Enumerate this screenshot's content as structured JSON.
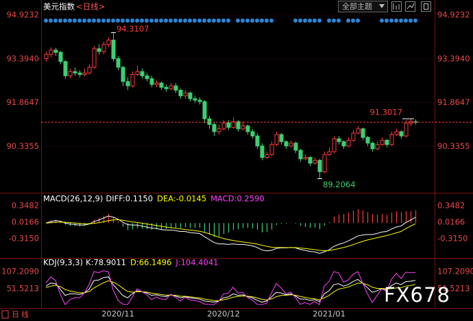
{
  "chart_data": [
    {
      "type": "candlestick",
      "title": "美元指数",
      "period": "<日线>",
      "categories": [
        null,
        null,
        null,
        null,
        null,
        null,
        null,
        null,
        null,
        null,
        null,
        null,
        null,
        null,
        null,
        "2020/11",
        null,
        null,
        null,
        null,
        null,
        null,
        null,
        null,
        null,
        null,
        null,
        null,
        null,
        null,
        null,
        null,
        null,
        null,
        null,
        null,
        null,
        "2020/12",
        null,
        null,
        null,
        null,
        null,
        null,
        null,
        null,
        null,
        null,
        null,
        null,
        null,
        null,
        null,
        null,
        null,
        null,
        null,
        null,
        null,
        "2021/01",
        null,
        null,
        null,
        null,
        null,
        null,
        null,
        null,
        null,
        null,
        null,
        null,
        null,
        null,
        null,
        null,
        null,
        null
      ],
      "open": [
        93.4,
        93.55,
        93.7,
        93.62,
        93.3,
        92.8,
        92.95,
        92.9,
        92.85,
        92.9,
        93.1,
        93.75,
        93.65,
        93.9,
        94.05,
        93.4,
        93.1,
        92.6,
        92.45,
        92.85,
        92.95,
        92.8,
        92.7,
        92.5,
        92.55,
        92.4,
        92.35,
        92.45,
        92.3,
        92.1,
        92.2,
        92.0,
        91.95,
        91.9,
        91.3,
        91.1,
        90.85,
        90.95,
        91.15,
        91.0,
        91.2,
        90.95,
        91.05,
        90.85,
        90.7,
        90.35,
        89.95,
        90.05,
        90.4,
        90.75,
        90.5,
        90.35,
        90.45,
        90.2,
        89.9,
        89.95,
        89.75,
        89.85,
        89.45,
        90.05,
        90.15,
        90.6,
        90.5,
        90.35,
        90.55,
        90.8,
        90.95,
        90.65,
        90.45,
        90.25,
        90.4,
        90.55,
        90.4,
        90.75,
        90.85,
        90.7,
        91.15,
        91.2
      ],
      "high": [
        93.65,
        93.8,
        93.78,
        93.68,
        93.35,
        93.05,
        93.1,
        93.0,
        93.05,
        93.2,
        93.85,
        93.9,
        94.0,
        94.15,
        94.3107,
        93.5,
        93.15,
        92.75,
        92.95,
        93.15,
        93.05,
        92.9,
        92.8,
        92.65,
        92.6,
        92.5,
        92.55,
        92.55,
        92.35,
        92.3,
        92.25,
        92.1,
        92.05,
        91.95,
        91.4,
        91.2,
        91.1,
        91.25,
        91.25,
        91.35,
        91.25,
        91.2,
        91.1,
        90.95,
        90.8,
        90.45,
        90.15,
        90.5,
        90.85,
        90.8,
        90.55,
        90.55,
        90.5,
        90.25,
        90.05,
        90.0,
        89.95,
        89.9,
        90.15,
        90.3,
        90.7,
        90.7,
        90.55,
        90.65,
        90.9,
        91.05,
        91.0,
        90.7,
        90.5,
        90.5,
        90.65,
        90.6,
        90.85,
        90.95,
        90.9,
        91.25,
        91.3017,
        91.28
      ],
      "low": [
        93.3,
        93.45,
        93.5,
        93.2,
        92.7,
        92.72,
        92.8,
        92.75,
        92.78,
        92.85,
        93.05,
        93.55,
        93.55,
        93.8,
        93.3,
        93.0,
        92.45,
        92.3,
        92.4,
        92.8,
        92.7,
        92.6,
        92.4,
        92.4,
        92.3,
        92.25,
        92.3,
        92.2,
        92.0,
        92.0,
        91.9,
        91.85,
        91.8,
        91.15,
        90.95,
        90.7,
        90.75,
        90.9,
        90.9,
        90.95,
        90.85,
        90.9,
        90.75,
        90.6,
        90.25,
        89.85,
        89.9,
        90.0,
        90.35,
        90.4,
        90.25,
        90.3,
        90.1,
        89.8,
        89.85,
        89.65,
        89.7,
        89.2064,
        89.4,
        90.0,
        90.1,
        90.4,
        90.25,
        90.3,
        90.5,
        90.75,
        90.55,
        90.35,
        90.15,
        90.2,
        90.35,
        90.3,
        90.35,
        90.7,
        90.6,
        90.65,
        91.05,
        91.1
      ],
      "close": [
        93.55,
        93.7,
        93.62,
        93.3,
        92.8,
        92.95,
        92.9,
        92.85,
        92.9,
        93.1,
        93.75,
        93.65,
        93.9,
        94.05,
        93.4,
        93.1,
        92.6,
        92.45,
        92.85,
        92.95,
        92.8,
        92.7,
        92.5,
        92.55,
        92.4,
        92.35,
        92.45,
        92.3,
        92.1,
        92.2,
        92.0,
        91.95,
        91.9,
        91.3,
        91.1,
        90.85,
        90.95,
        91.15,
        91.0,
        91.2,
        90.95,
        91.05,
        90.85,
        90.7,
        90.35,
        89.95,
        90.05,
        90.4,
        90.75,
        90.5,
        90.35,
        90.45,
        90.2,
        89.9,
        89.95,
        89.75,
        89.85,
        89.45,
        90.05,
        90.15,
        90.6,
        90.5,
        90.35,
        90.55,
        90.8,
        90.95,
        90.65,
        90.45,
        90.25,
        90.4,
        90.55,
        90.4,
        90.75,
        90.85,
        90.7,
        91.15,
        91.2,
        91.18
      ],
      "ylim": [
        88.74,
        95.21
      ],
      "yticks": [
        94.9232,
        {
          "value": 93.394,
          "label": "93.3940"
        },
        91.8647,
        90.3355
      ],
      "grid": true,
      "up_color": "#ff3c3c",
      "down_color": "#3ccf72"
    },
    {
      "type": "macd",
      "header": "MACD(26,12,9)",
      "series": [
        {
          "legend": "DIFF:0.1150",
          "color": "#ffffff",
          "values": [
            0.0,
            0.03,
            0.05,
            0.04,
            0.0,
            -0.02,
            -0.03,
            -0.04,
            -0.04,
            -0.02,
            0.03,
            0.06,
            0.1,
            0.14,
            0.12,
            0.08,
            0.02,
            -0.03,
            -0.04,
            -0.04,
            -0.06,
            -0.08,
            -0.1,
            -0.11,
            -0.13,
            -0.14,
            -0.14,
            -0.15,
            -0.17,
            -0.17,
            -0.19,
            -0.2,
            -0.21,
            -0.27,
            -0.33,
            -0.39,
            -0.42,
            -0.42,
            -0.43,
            -0.42,
            -0.43,
            -0.43,
            -0.44,
            -0.46,
            -0.49,
            -0.54,
            -0.56,
            -0.55,
            -0.51,
            -0.5,
            -0.5,
            -0.49,
            -0.5,
            -0.53,
            -0.55,
            -0.57,
            -0.58,
            -0.61,
            -0.58,
            -0.54,
            -0.47,
            -0.43,
            -0.4,
            -0.36,
            -0.31,
            -0.26,
            -0.24,
            -0.23,
            -0.23,
            -0.21,
            -0.18,
            -0.17,
            -0.12,
            -0.08,
            -0.06,
            0.01,
            0.06,
            0.115
          ]
        },
        {
          "legend": "DEA:-0.0145",
          "color": "#ffff00",
          "values": [
            0.0,
            0.006,
            0.015,
            0.02,
            0.016,
            0.009,
            0.001,
            -0.007,
            -0.014,
            -0.015,
            -0.006,
            0.007,
            0.026,
            0.048,
            0.062,
            0.066,
            0.057,
            0.04,
            0.024,
            0.011,
            -0.003,
            -0.018,
            -0.034,
            -0.049,
            -0.066,
            -0.08,
            -0.093,
            -0.104,
            -0.117,
            -0.128,
            -0.14,
            -0.152,
            -0.164,
            -0.185,
            -0.214,
            -0.249,
            -0.283,
            -0.31,
            -0.334,
            -0.351,
            -0.367,
            -0.38,
            -0.392,
            -0.406,
            -0.423,
            -0.446,
            -0.469,
            -0.485,
            -0.49,
            -0.492,
            -0.494,
            -0.493,
            -0.494,
            -0.502,
            -0.512,
            -0.523,
            -0.534,
            -0.549,
            -0.555,
            -0.552,
            -0.536,
            -0.515,
            -0.492,
            -0.466,
            -0.435,
            -0.4,
            -0.368,
            -0.34,
            -0.318,
            -0.296,
            -0.273,
            -0.252,
            -0.226,
            -0.197,
            -0.17,
            -0.11,
            -0.06,
            -0.0145
          ]
        },
        {
          "legend": "MACD:0.2590",
          "color": "#ff44ff",
          "kind": "bar",
          "values": [
            0,
            0.048,
            0.07,
            0.04,
            -0.032,
            -0.058,
            -0.062,
            -0.066,
            -0.052,
            -0.01,
            0.072,
            0.106,
            0.148,
            0.184,
            0.116,
            0.028,
            -0.074,
            -0.14,
            -0.128,
            -0.102,
            -0.114,
            -0.124,
            -0.132,
            -0.122,
            -0.128,
            -0.12,
            -0.094,
            -0.092,
            -0.106,
            -0.084,
            -0.1,
            -0.096,
            -0.092,
            -0.17,
            -0.232,
            -0.282,
            -0.274,
            -0.22,
            -0.192,
            -0.138,
            -0.126,
            -0.1,
            -0.096,
            -0.108,
            -0.134,
            -0.188,
            -0.182,
            -0.13,
            -0.04,
            -0.016,
            -0.012,
            0.006,
            -0.012,
            -0.056,
            -0.076,
            -0.094,
            -0.092,
            -0.122,
            -0.05,
            0.024,
            0.132,
            0.17,
            0.184,
            0.212,
            0.25,
            0.28,
            0.256,
            0.22,
            0.176,
            0.172,
            0.186,
            0.164,
            0.212,
            0.234,
            0.22,
            0.24,
            0.24,
            0.259
          ]
        }
      ],
      "ylim": [
        -0.646,
        0.569
      ],
      "yticks": [
        0.3482,
        0.0166,
        {
          "value": -0.315,
          "label": "-0.3150"
        }
      ],
      "up_color": "#ff3c3c",
      "down_color": "#3ccf72"
    },
    {
      "type": "line",
      "header": "KDJ(9,3,3)",
      "series": [
        {
          "legend": "K:78.9011",
          "color": "#ffffff",
          "values": [
            60,
            70,
            68,
            50,
            30,
            35,
            35,
            33,
            38,
            50,
            78,
            80,
            88,
            90,
            65,
            48,
            30,
            22,
            35,
            45,
            42,
            38,
            30,
            32,
            28,
            26,
            32,
            28,
            22,
            26,
            22,
            20,
            18,
            12,
            10,
            8,
            12,
            22,
            25,
            35,
            30,
            32,
            26,
            22,
            14,
            8,
            12,
            25,
            40,
            38,
            32,
            35,
            28,
            18,
            18,
            14,
            16,
            10,
            35,
            45,
            65,
            68,
            60,
            65,
            75,
            82,
            70,
            55,
            40,
            45,
            52,
            48,
            62,
            70,
            65,
            75,
            76,
            78.9011
          ]
        },
        {
          "legend": "D:66.1496",
          "color": "#ffff00",
          "values": [
            55,
            60,
            62.7,
            58.5,
            49,
            44.3,
            41.2,
            38.5,
            38.3,
            42.2,
            54.1,
            62.7,
            71.1,
            77.4,
            73.3,
            64.9,
            53.3,
            42.9,
            40.3,
            41.8,
            41.9,
            40.6,
            37.1,
            35.4,
            32.9,
            30.6,
            31.1,
            30.1,
            27.4,
            26.9,
            25.3,
            23.5,
            21.7,
            18.5,
            15.7,
            13.1,
            12.7,
            15.8,
            18.9,
            24.3,
            26.2,
            28.1,
            27.4,
            25.6,
            21.7,
            17.1,
            15.4,
            18.6,
            25.7,
            29.8,
            30.5,
            32,
            30.7,
            26.5,
            23.7,
            20.5,
            19,
            16,
            22.3,
            29.9,
            41.6,
            50.4,
            53.6,
            57.4,
            63.3,
            69.5,
            69.7,
            64.8,
            56.5,
            52.7,
            52.5,
            51,
            52,
            54,
            55,
            60,
            62,
            66.1496
          ]
        },
        {
          "legend": "J:104.4041",
          "color": "#ff44ff",
          "values": [
            70,
            90,
            78.6,
            33,
            0,
            16.4,
            22.6,
            22,
            37.4,
            65.6,
            107,
            104,
            110,
            107,
            48.4,
            14.2,
            2,
            0,
            24.4,
            51.4,
            42.2,
            32.8,
            15.8,
            25.2,
            18.2,
            16.8,
            33.8,
            23.8,
            11.2,
            24.2,
            15.4,
            13,
            10.6,
            2,
            1,
            0,
            10.6,
            34.4,
            37.2,
            56.4,
            37.6,
            39.8,
            23.2,
            14.8,
            1,
            0,
            5.2,
            37.8,
            68.6,
            54.4,
            35,
            41,
            22.6,
            1,
            6.6,
            1,
            10,
            0,
            60.4,
            75.2,
            107,
            103.2,
            72.8,
            80.2,
            98.4,
            107,
            70.6,
            35.4,
            7,
            29.6,
            51,
            42,
            82,
            102,
            85,
            105,
            104,
            104.4041
          ]
        }
      ],
      "ylim": [
        -8.6,
        142.8
      ],
      "yticks": [
        {
          "value": 107.209,
          "label": "107.2090"
        },
        51.5213
      ]
    }
  ],
  "ui": {
    "theme_button": "全部主题",
    "bottom_tab": "日线",
    "watermark": "FX678"
  }
}
